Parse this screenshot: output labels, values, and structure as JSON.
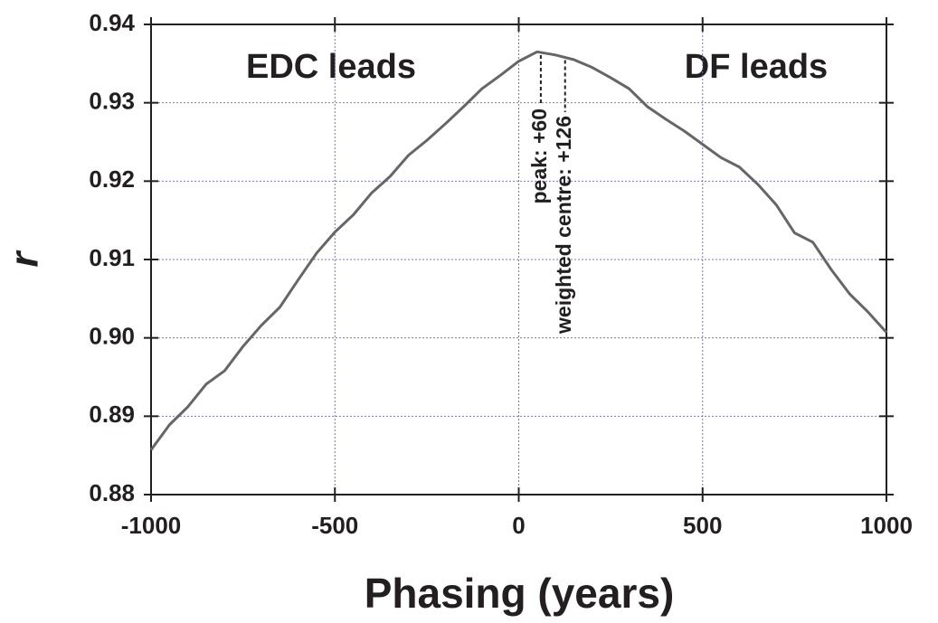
{
  "chart_data": {
    "type": "line",
    "x_label": "Phasing (years)",
    "y_label": "r",
    "x": [
      -1000,
      -950,
      -900,
      -850,
      -800,
      -750,
      -700,
      -650,
      -600,
      -550,
      -500,
      -450,
      -400,
      -350,
      -300,
      -250,
      -200,
      -150,
      -100,
      -50,
      0,
      50,
      100,
      150,
      200,
      250,
      300,
      350,
      400,
      450,
      500,
      550,
      600,
      650,
      700,
      750,
      800,
      850,
      900,
      950,
      1000
    ],
    "series": [
      {
        "name": "r",
        "color": "#666666",
        "values": [
          0.8857,
          0.8889,
          0.8912,
          0.8941,
          0.8958,
          0.8989,
          0.9016,
          0.9039,
          0.9074,
          0.9108,
          0.9135,
          0.9157,
          0.9185,
          0.9206,
          0.9233,
          0.9252,
          0.9273,
          0.9295,
          0.9318,
          0.9335,
          0.9353,
          0.9365,
          0.9361,
          0.9355,
          0.9345,
          0.9332,
          0.9318,
          0.9295,
          0.9279,
          0.9264,
          0.9247,
          0.923,
          0.9218,
          0.9196,
          0.917,
          0.9134,
          0.9122,
          0.9087,
          0.9056,
          0.9033,
          0.9007
        ]
      }
    ],
    "xlim": [
      -1000,
      1000
    ],
    "xticks": [
      -1000,
      -500,
      0,
      500,
      1000
    ],
    "ylim": [
      0.88,
      0.94
    ],
    "yticks": [
      0.88,
      0.89,
      {
        "value": 0.9,
        "label": "0.90"
      },
      0.91,
      0.92,
      0.93,
      0.94
    ],
    "grid": true,
    "annotations": [
      "EDC leads",
      "DF leads"
    ],
    "markers": [
      {
        "x": 60,
        "label": "peak: +60"
      },
      {
        "x": 126,
        "label": "weighted centre: +126"
      }
    ]
  }
}
